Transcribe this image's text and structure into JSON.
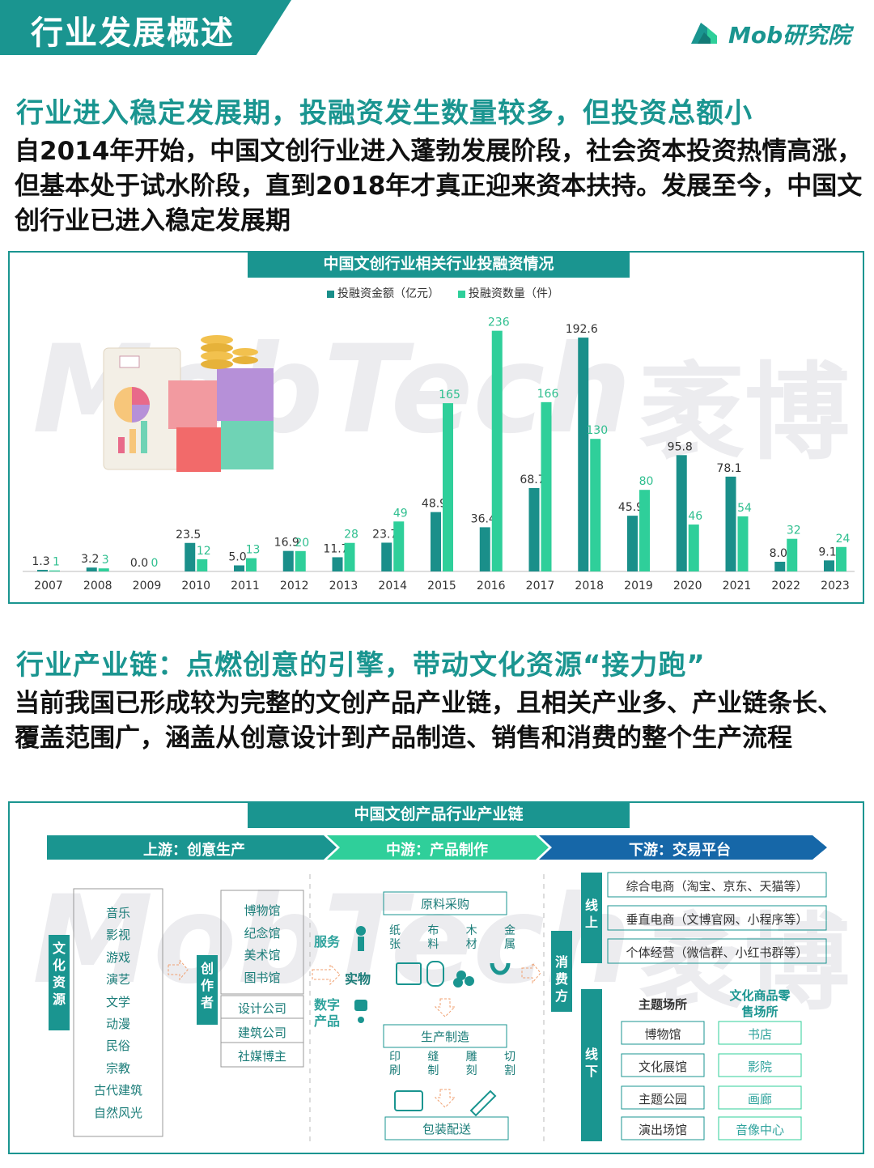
{
  "header": {
    "title": "行业发展概述",
    "logo_text": "Mob研究院"
  },
  "section1": {
    "title": "行业进入稳定发展期，投融资发生数量较多，但投资总额小",
    "paragraph": "自2014年开始，中国文创行业进入蓬勃发展阶段，社会资本投资热情高涨，但基本处于试水阶段，直到2018年才真正迎来资本扶持。发展至今，中国文创行业已进入稳定发展期"
  },
  "watermark": {
    "left": "MobTech",
    "right": "袤博"
  },
  "chart_data": {
    "type": "bar",
    "title": "中国文创行业相关行业投融资情况",
    "categories": [
      "2007",
      "2008",
      "2009",
      "2010",
      "2011",
      "2012",
      "2013",
      "2014",
      "2015",
      "2016",
      "2017",
      "2018",
      "2019",
      "2020",
      "2021",
      "2022",
      "2023"
    ],
    "series": [
      {
        "name": "投融资金额（亿元）",
        "color": "#1a8f8a",
        "values": [
          1.3,
          3.2,
          0.0,
          23.5,
          5.0,
          16.9,
          11.7,
          23.7,
          48.9,
          36.4,
          68.7,
          192.6,
          45.9,
          95.8,
          78.1,
          8.0,
          9.1
        ],
        "labels": [
          "1.3",
          "3.2",
          "0.0",
          "23.5",
          "5.0",
          "16.9",
          "11.7",
          "23.7",
          "48.9",
          "36.4",
          "68.7",
          "192.6",
          "45.9",
          "95.8",
          "78.1",
          "8.0",
          "9.1"
        ]
      },
      {
        "name": "投融资数量（件）",
        "color": "#2fcf9a",
        "values": [
          1,
          3,
          0,
          12,
          13,
          20,
          28,
          49,
          165,
          236,
          166,
          130,
          80,
          46,
          54,
          32,
          24
        ],
        "labels": [
          "1",
          "3",
          "0",
          "12",
          "13",
          "20",
          "28",
          "49",
          "165",
          "236",
          "166",
          "130",
          "80",
          "46",
          "54",
          "32",
          "24"
        ]
      }
    ],
    "legend_position": "top-center",
    "grid": false
  },
  "section2": {
    "title": "行业产业链：点燃创意的引擎，带动文化资源“接力跑”",
    "paragraph": "当前我国已形成较为完整的文创产品产业链，且相关产业多、产业链条长、覆盖范围广，涵盖从创意设计到产品制造、销售和消费的整个生产流程"
  },
  "chain": {
    "title": "中国文创产品行业产业链",
    "stages": [
      "上游：创意生产",
      "中游：产品制作",
      "下游：交易平台"
    ],
    "culture_label": "文化资源",
    "culture_items": [
      "音乐",
      "影视",
      "游戏",
      "演艺",
      "文学",
      "动漫",
      "民俗",
      "宗教",
      "古代建筑",
      "自然风光"
    ],
    "creator_label": "创作者",
    "creator_items_a": [
      "博物馆",
      "纪念馆",
      "美术馆",
      "图书馆"
    ],
    "creator_items_b": [
      "设计公司",
      "建筑公司",
      "社媒博主"
    ],
    "service_label": "服务",
    "physical_label": "实物",
    "digital_label": "数字产品",
    "procurement": "原料采购",
    "materials": [
      "纸张",
      "布料",
      "木材",
      "金属"
    ],
    "manufacturing": "生产制造",
    "processes": [
      "印刷",
      "缝制",
      "雕刻",
      "切割"
    ],
    "packaging": "包装配送",
    "consumer_label": "消费方",
    "online_label": "线上",
    "online_items": [
      "综合电商（淘宝、京东、天猫等）",
      "垂直电商（文博官网、小程序等）",
      "个体经营（微信群、小红书群等）"
    ],
    "offline_label": "线下",
    "themed_label": "主题场所",
    "themed_items": [
      "博物馆",
      "文化展馆",
      "主题公园",
      "演出场馆"
    ],
    "retail_label": "文化商品零售场所",
    "retail_items": [
      "书店",
      "影院",
      "画廊",
      "音像中心"
    ]
  },
  "colors": {
    "teal": "#1a9590",
    "mint": "#2fcf9a",
    "blue": "#1667a8"
  }
}
